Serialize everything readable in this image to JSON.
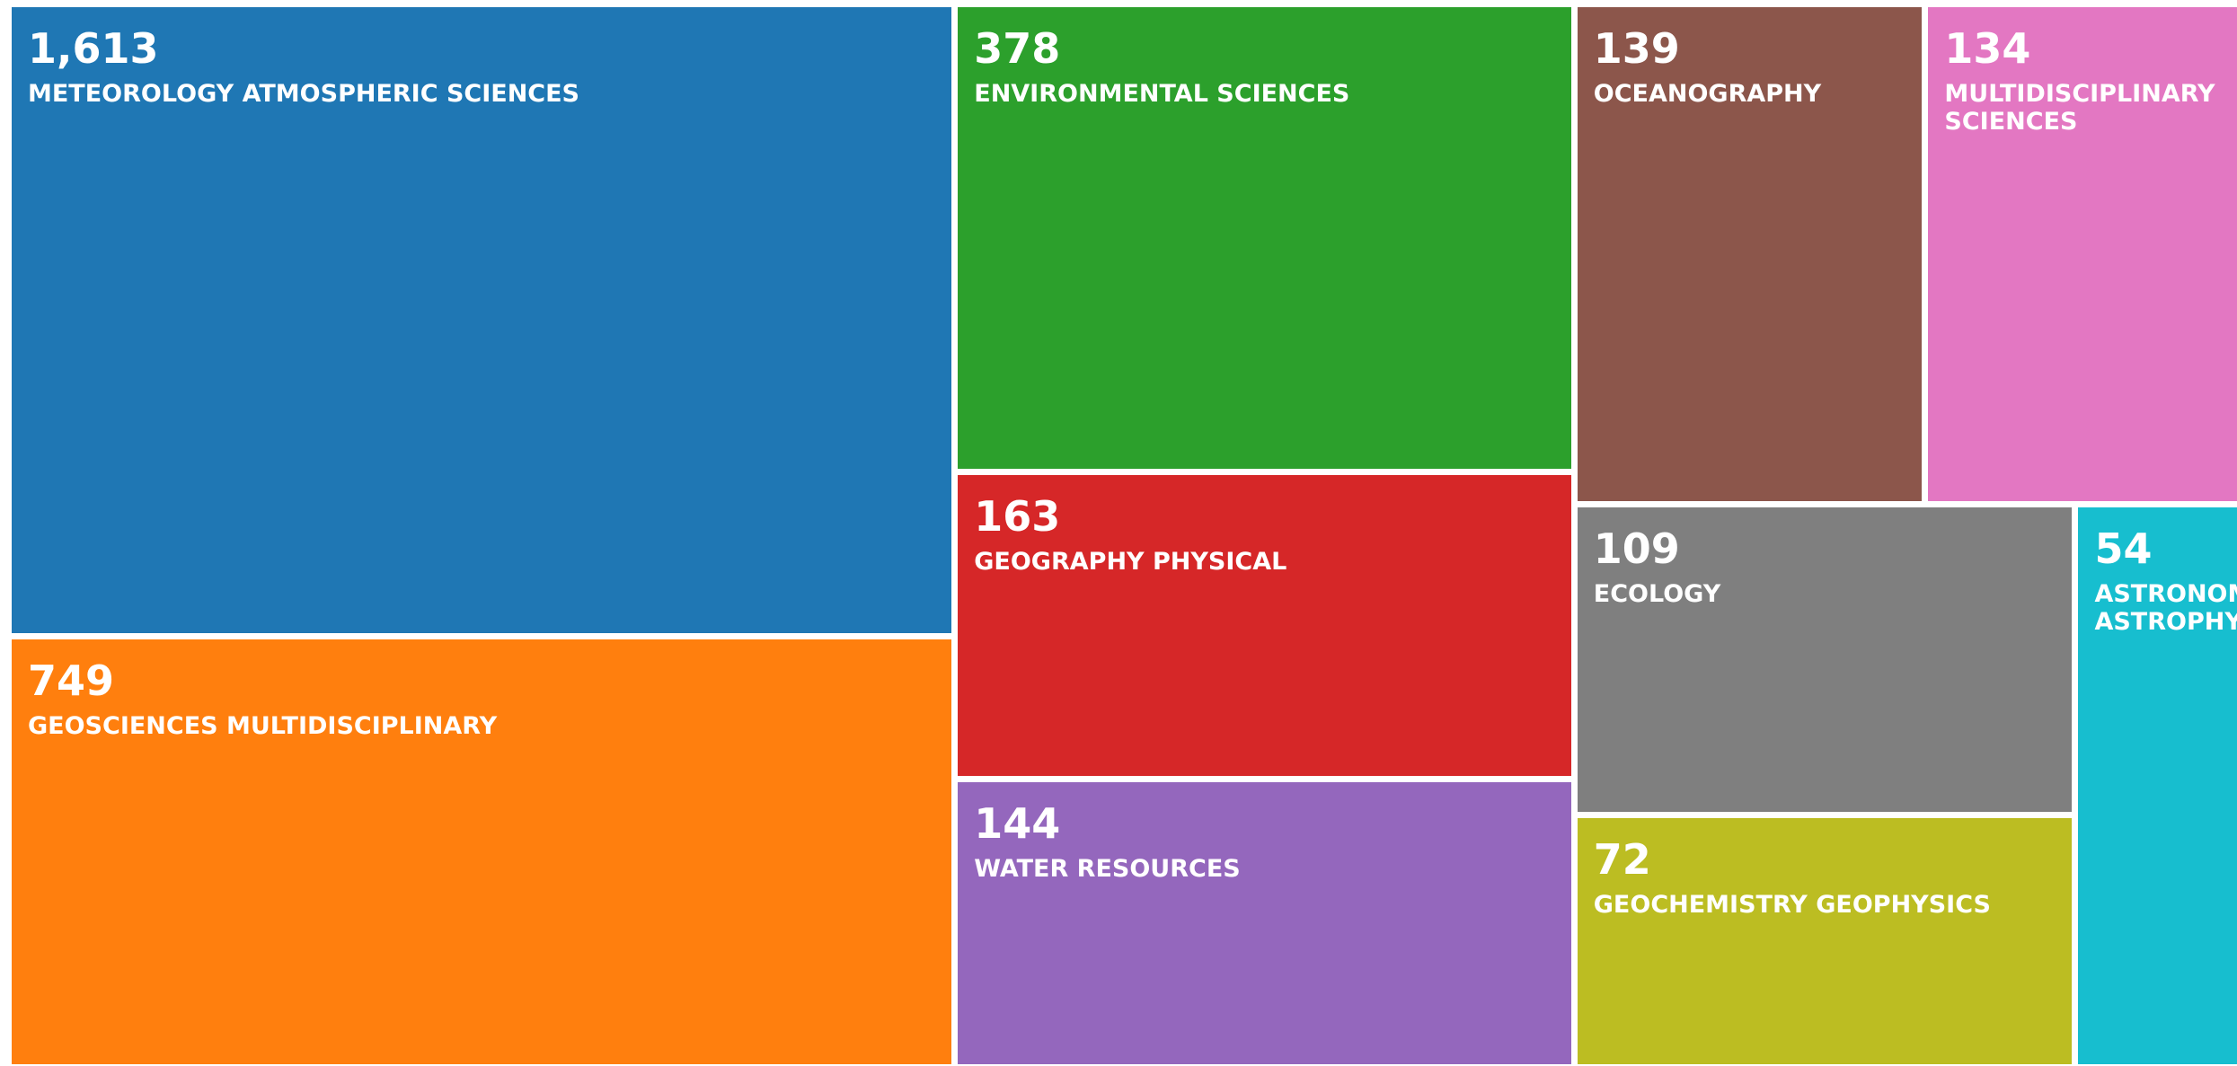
{
  "chart_data": {
    "type": "treemap",
    "categories": [
      "METEOROLOGY ATMOSPHERIC SCIENCES",
      "GEOSCIENCES MULTIDISCIPLINARY",
      "ENVIRONMENTAL SCIENCES",
      "GEOGRAPHY PHYSICAL",
      "WATER RESOURCES",
      "OCEANOGRAPHY",
      "MULTIDISCIPLINARY SCIENCES",
      "ECOLOGY",
      "GEOCHEMISTRY GEOPHYSICS",
      "ASTRONOMY ASTROPHYSICS"
    ],
    "values": [
      1613,
      749,
      378,
      163,
      144,
      139,
      134,
      109,
      72,
      54
    ],
    "value_labels": [
      "1,613",
      "749",
      "378",
      "163",
      "144",
      "139",
      "134",
      "109",
      "72",
      "54"
    ],
    "colors": [
      "#1f77b4",
      "#ff7f0e",
      "#2ca02c",
      "#d62728",
      "#9467bd",
      "#8c564b",
      "#e377c2",
      "#7f7f7f",
      "#bcbd22",
      "#17becf"
    ]
  }
}
